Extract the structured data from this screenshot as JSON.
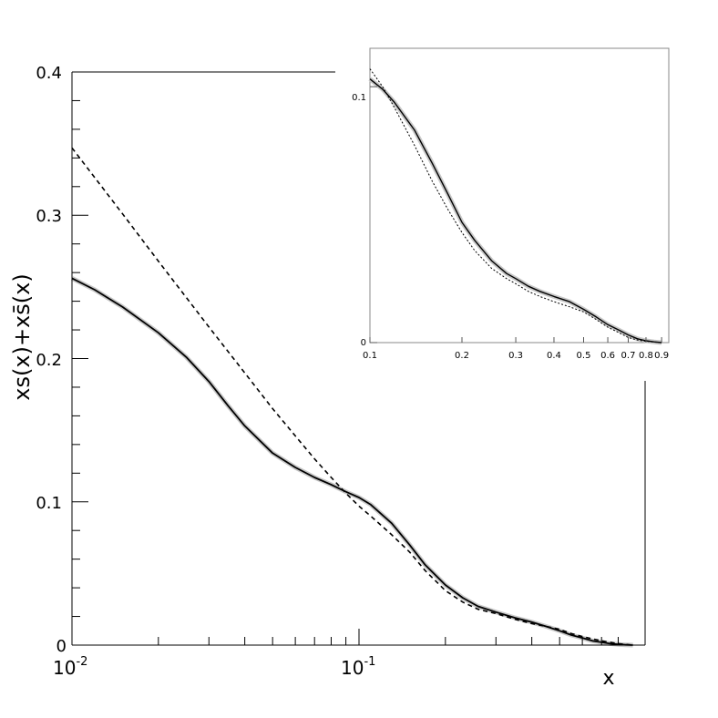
{
  "chart_data": [
    {
      "type": "line",
      "title": "",
      "xlabel": "x",
      "ylabel": "xs(x)+xs̄(x)",
      "xscale": "log",
      "xlim": [
        0.01,
        0.9
      ],
      "ylim": [
        0,
        0.4
      ],
      "grid": false,
      "x_tick_labels": [
        {
          "value": 0.01,
          "base": "10",
          "exp": "-2"
        },
        {
          "value": 0.1,
          "base": "10",
          "exp": "-1"
        }
      ],
      "y_tick_labels": [
        "0",
        "0.1",
        "0.2",
        "0.3",
        "0.4"
      ],
      "series": [
        {
          "style": "solid",
          "color": "#000000",
          "band_color": "#c8c8c8",
          "x": [
            0.01,
            0.012,
            0.015,
            0.02,
            0.025,
            0.03,
            0.035,
            0.04,
            0.05,
            0.06,
            0.07,
            0.08,
            0.09,
            0.1,
            0.11,
            0.13,
            0.15,
            0.17,
            0.2,
            0.23,
            0.26,
            0.3,
            0.35,
            0.4,
            0.45,
            0.5,
            0.55,
            0.6,
            0.65,
            0.7,
            0.75,
            0.8,
            0.85,
            0.9
          ],
          "y": [
            0.256,
            0.248,
            0.236,
            0.218,
            0.201,
            0.184,
            0.167,
            0.153,
            0.134,
            0.124,
            0.117,
            0.112,
            0.107,
            0.103,
            0.098,
            0.085,
            0.07,
            0.056,
            0.042,
            0.033,
            0.027,
            0.023,
            0.019,
            0.016,
            0.013,
            0.01,
            0.007,
            0.005,
            0.003,
            0.002,
            0.001,
            0.0005,
            0.0002,
            0.0
          ]
        },
        {
          "style": "dashed",
          "color": "#000000",
          "x": [
            0.01,
            0.015,
            0.02,
            0.03,
            0.04,
            0.05,
            0.06,
            0.07,
            0.08,
            0.09,
            0.1,
            0.11,
            0.13,
            0.15,
            0.17,
            0.2,
            0.23,
            0.26,
            0.3,
            0.35,
            0.4,
            0.45,
            0.5,
            0.55,
            0.6,
            0.7,
            0.8,
            0.9
          ],
          "y": [
            0.347,
            0.301,
            0.268,
            0.222,
            0.19,
            0.165,
            0.146,
            0.13,
            0.117,
            0.106,
            0.097,
            0.09,
            0.077,
            0.065,
            0.052,
            0.038,
            0.03,
            0.025,
            0.022,
            0.018,
            0.015,
            0.013,
            0.011,
            0.008,
            0.006,
            0.003,
            0.001,
            0.0
          ]
        }
      ]
    },
    {
      "type": "line",
      "title": "",
      "xscale": "log",
      "xlim": [
        0.1,
        0.95
      ],
      "ylim": [
        0,
        0.115
      ],
      "grid": false,
      "x_tick_labels": [
        "0.1",
        "0.2",
        "0.3",
        "0.4",
        "0.5",
        "0.6",
        "0.7",
        "0.8",
        "0.9"
      ],
      "y_tick_labels": [
        "0",
        "0.1"
      ],
      "series": [
        {
          "style": "solid",
          "color": "#000000",
          "band_color": "#c8c8c8",
          "x": [
            0.1,
            0.11,
            0.12,
            0.14,
            0.16,
            0.18,
            0.2,
            0.22,
            0.25,
            0.28,
            0.3,
            0.33,
            0.36,
            0.4,
            0.45,
            0.5,
            0.55,
            0.6,
            0.65,
            0.7,
            0.75,
            0.8,
            0.85,
            0.9
          ],
          "y": [
            0.103,
            0.099,
            0.094,
            0.083,
            0.07,
            0.058,
            0.047,
            0.04,
            0.032,
            0.027,
            0.025,
            0.022,
            0.02,
            0.018,
            0.016,
            0.013,
            0.01,
            0.007,
            0.005,
            0.003,
            0.0015,
            0.0007,
            0.0003,
            0.0
          ]
        },
        {
          "style": "dashed",
          "color": "#000000",
          "x": [
            0.1,
            0.11,
            0.12,
            0.14,
            0.16,
            0.18,
            0.2,
            0.22,
            0.25,
            0.28,
            0.3,
            0.33,
            0.36,
            0.4,
            0.45,
            0.5,
            0.55,
            0.6,
            0.65,
            0.7,
            0.75,
            0.8,
            0.85,
            0.9
          ],
          "y": [
            0.107,
            0.1,
            0.092,
            0.077,
            0.063,
            0.052,
            0.043,
            0.036,
            0.029,
            0.025,
            0.023,
            0.02,
            0.018,
            0.016,
            0.014,
            0.012,
            0.009,
            0.006,
            0.004,
            0.002,
            0.001,
            0.0005,
            0.0002,
            0.0
          ]
        }
      ]
    }
  ]
}
